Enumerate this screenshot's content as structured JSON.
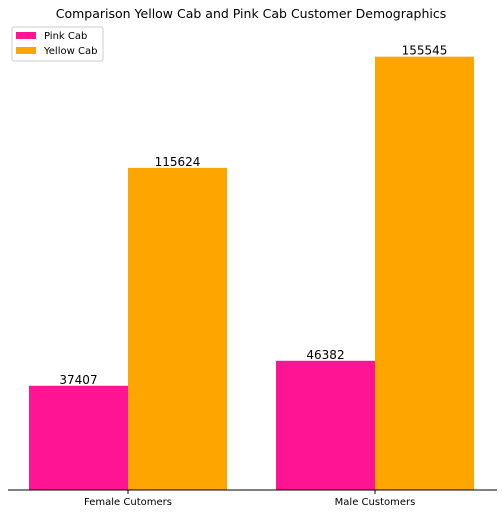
{
  "chart_data": {
    "type": "bar",
    "title": "Comparison Yellow Cab and Pink Cab Customer Demographics",
    "xlabel": "",
    "ylabel": "",
    "categories": [
      "Female Cutomers",
      "Male Customers"
    ],
    "series": [
      {
        "name": "Pink Cab",
        "color": "#ff1493",
        "values": [
          37407,
          46382
        ]
      },
      {
        "name": "Yellow Cab",
        "color": "#ffa500",
        "values": [
          115624,
          155545
        ]
      }
    ],
    "ylim": [
      0,
      163322
    ],
    "grid": false,
    "legend_position": "top-left",
    "y_axis_visible": false
  }
}
